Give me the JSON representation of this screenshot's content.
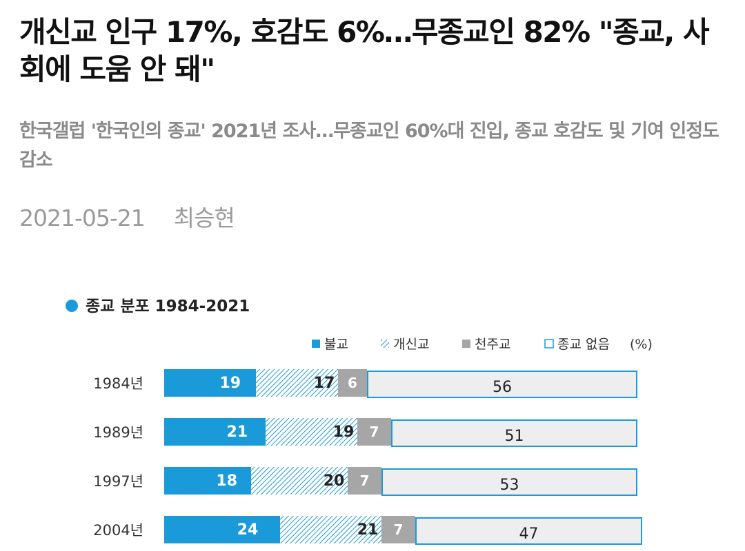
{
  "article": {
    "title": "개신교 인구 17%, 호감도 6%…무종교인 82% \"종교, 사회에 도움 안 돼\"",
    "subtitle": "한국갤럽 '한국인의 종교' 2021년 조사…무종교인 60%대 진입, 종교 호감도 및 기여 인정도 감소",
    "date": "2021-05-21",
    "author": "최승현"
  },
  "chart_data": {
    "type": "bar",
    "stacked": true,
    "orientation": "horizontal",
    "title": "종교 분포 1984-2021",
    "unit": "(%)",
    "categories": [
      "1984년",
      "1989년",
      "1997년",
      "2004년"
    ],
    "series": [
      {
        "name": "불교",
        "values": [
          19,
          21,
          18,
          24
        ],
        "color": "#1a9ad9",
        "style": "solid"
      },
      {
        "name": "개신교",
        "values": [
          17,
          19,
          20,
          21
        ],
        "color": "#1a9ad9",
        "style": "hatched"
      },
      {
        "name": "천주교",
        "values": [
          6,
          7,
          7,
          7
        ],
        "color": "#a6a6a6",
        "style": "solid"
      },
      {
        "name": "종교 없음",
        "values": [
          56,
          51,
          53,
          47
        ],
        "color": "#eeeeee",
        "border": "#1a9ad9",
        "style": "outlined"
      }
    ],
    "title_marker_color": "#1a9ad9"
  }
}
